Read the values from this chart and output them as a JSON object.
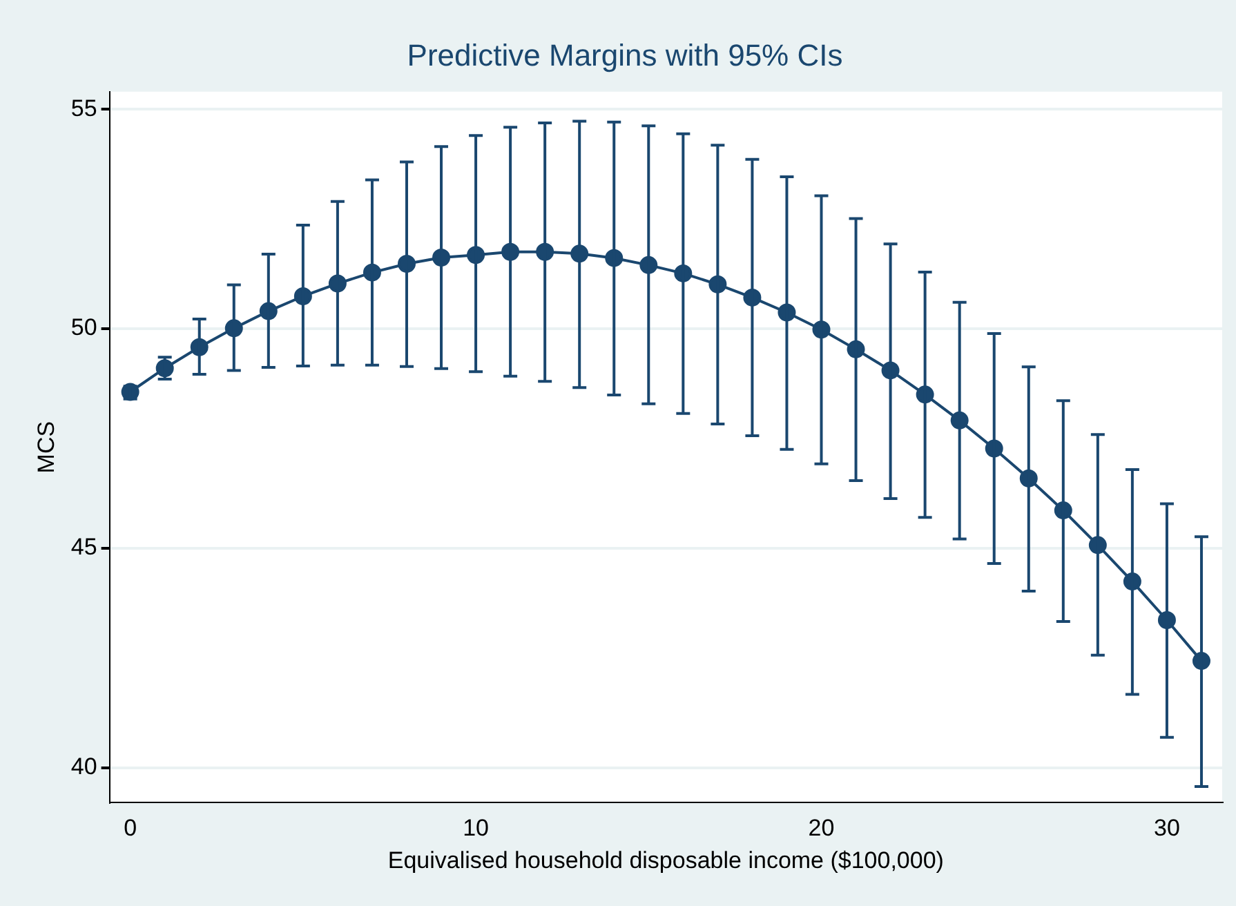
{
  "chart_data": {
    "type": "line",
    "title": "Predictive Margins with 95% CIs",
    "xlabel": "Equivalised household disposable income ($100,000)",
    "ylabel": "MCS",
    "x": [
      0,
      1,
      2,
      3,
      4,
      5,
      6,
      7,
      8,
      9,
      10,
      11,
      12,
      13,
      14,
      15,
      16,
      17,
      18,
      19,
      20,
      21,
      22,
      23,
      24,
      25,
      26,
      27,
      28,
      29,
      30,
      31
    ],
    "series": [
      {
        "color": "#1a476f",
        "values": [
          48.56,
          49.1,
          49.58,
          50.01,
          50.4,
          50.74,
          51.03,
          51.28,
          51.48,
          51.62,
          51.68,
          51.75,
          51.75,
          51.71,
          51.61,
          51.45,
          51.26,
          51.01,
          50.71,
          50.37,
          49.98,
          49.53,
          49.05,
          48.5,
          47.91,
          47.27,
          46.59,
          45.86,
          45.07,
          44.24,
          43.36,
          42.43
        ],
        "errors": [
          [
            48.4,
            48.69
          ],
          [
            48.85,
            49.35
          ],
          [
            48.96,
            50.22
          ],
          [
            49.05,
            51.0
          ],
          [
            49.12,
            51.7
          ],
          [
            49.15,
            52.36
          ],
          [
            49.17,
            52.9
          ],
          [
            49.17,
            53.39
          ],
          [
            49.14,
            53.8
          ],
          [
            49.09,
            54.15
          ],
          [
            49.02,
            54.4
          ],
          [
            48.92,
            54.59
          ],
          [
            48.8,
            54.69
          ],
          [
            48.66,
            54.73
          ],
          [
            48.49,
            54.71
          ],
          [
            48.29,
            54.62
          ],
          [
            48.07,
            54.44
          ],
          [
            47.83,
            54.18
          ],
          [
            47.56,
            53.86
          ],
          [
            47.25,
            53.46
          ],
          [
            46.92,
            53.03
          ],
          [
            46.54,
            52.51
          ],
          [
            46.13,
            51.93
          ],
          [
            45.7,
            51.29
          ],
          [
            45.21,
            50.6
          ],
          [
            44.65,
            49.89
          ],
          [
            44.02,
            49.13
          ],
          [
            43.33,
            48.36
          ],
          [
            42.56,
            47.59
          ],
          [
            41.67,
            46.79
          ],
          [
            40.69,
            46.01
          ],
          [
            39.57,
            45.26
          ]
        ]
      }
    ],
    "xlim": [
      -0.6,
      31.6
    ],
    "ylim": [
      39.2,
      55.4
    ],
    "xticks": [
      0,
      10,
      20,
      30
    ],
    "yticks": [
      40,
      45,
      50,
      55
    ],
    "grid": "y",
    "legend": false,
    "marker": "circle",
    "line_style": "solid"
  }
}
